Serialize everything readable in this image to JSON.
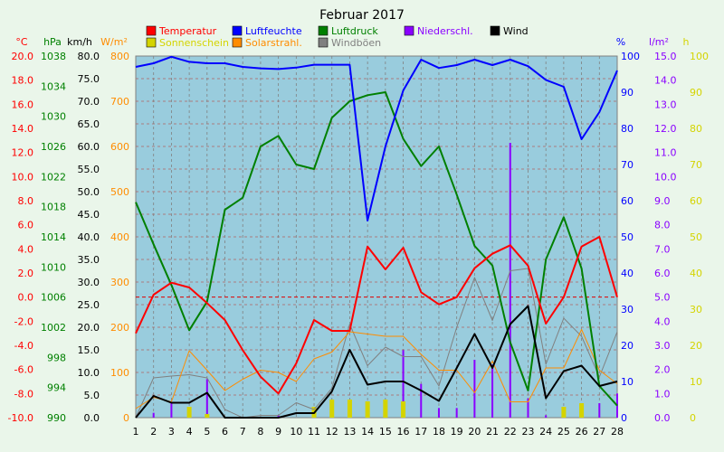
{
  "chart_data": {
    "type": "line",
    "title": "Februar 2017",
    "x": [
      1,
      2,
      3,
      4,
      5,
      6,
      7,
      8,
      9,
      10,
      11,
      12,
      13,
      14,
      15,
      16,
      17,
      18,
      19,
      20,
      21,
      22,
      23,
      24,
      25,
      26,
      27,
      28
    ],
    "legend": [
      {
        "label": "Temperatur",
        "color": "#ff0000"
      },
      {
        "label": "Luftfeuchte",
        "color": "#0000ff"
      },
      {
        "label": "Luftdruck",
        "color": "#008000"
      },
      {
        "label": "Niederschl.",
        "color": "#8a00ff"
      },
      {
        "label": "Wind",
        "color": "#000000"
      },
      {
        "label": "Sonnenschein",
        "color": "#d4d400"
      },
      {
        "label": "Solarstrahl.",
        "color": "#ff8c00"
      },
      {
        "label": "Windböen",
        "color": "#808080"
      }
    ],
    "axes": {
      "left": [
        {
          "unit": "°C",
          "color": "#ff0000",
          "ticks": [
            "20.0",
            "18.0",
            "16.0",
            "14.0",
            "12.0",
            "10.0",
            "8.0",
            "6.0",
            "4.0",
            "2.0",
            "0.0",
            "-2.0",
            "-4.0",
            "-6.0",
            "-8.0",
            "-10.0"
          ],
          "range": [
            -10,
            20
          ]
        },
        {
          "unit": "hPa",
          "color": "#008000",
          "ticks": [
            "1038",
            "1034",
            "1030",
            "1026",
            "1022",
            "1018",
            "1014",
            "1010",
            "1006",
            "1002",
            "998",
            "994",
            "990"
          ],
          "range": [
            990,
            1038
          ]
        },
        {
          "unit": "km/h",
          "color": "#000000",
          "ticks": [
            "80.0",
            "75.0",
            "70.0",
            "65.0",
            "60.0",
            "55.0",
            "50.0",
            "45.0",
            "40.0",
            "35.0",
            "30.0",
            "25.0",
            "20.0",
            "15.0",
            "10.0",
            "5.0",
            "0.0"
          ],
          "range": [
            0,
            80
          ]
        },
        {
          "unit": "W/m²",
          "color": "#ff8c00",
          "ticks": [
            "800",
            "700",
            "600",
            "500",
            "400",
            "300",
            "200",
            "100",
            "0"
          ],
          "range": [
            0,
            800
          ]
        }
      ],
      "right": [
        {
          "unit": "%",
          "color": "#0000ff",
          "ticks": [
            "100",
            "90",
            "80",
            "70",
            "60",
            "50",
            "40",
            "30",
            "20",
            "10",
            "0"
          ],
          "range": [
            0,
            100
          ]
        },
        {
          "unit": "l/m²",
          "color": "#8a00ff",
          "ticks": [
            "15.0",
            "14.0",
            "13.0",
            "12.0",
            "11.0",
            "10.0",
            "9.0",
            "8.0",
            "7.0",
            "6.0",
            "5.0",
            "4.0",
            "3.0",
            "2.0",
            "1.0",
            "0.0"
          ],
          "range": [
            0,
            15
          ]
        },
        {
          "unit": "h",
          "color": "#d4d400",
          "ticks": [
            "100",
            "90",
            "80",
            "70",
            "60",
            "50",
            "40",
            "30",
            "20",
            "10",
            "0"
          ],
          "range": [
            0,
            100
          ]
        }
      ]
    },
    "series": [
      {
        "name": "Temperatur",
        "axis": "°C",
        "color": "#ff0000",
        "type": "line",
        "values": [
          -3.0,
          0.2,
          1.2,
          0.8,
          -0.5,
          -1.9,
          -4.4,
          -6.6,
          -8.0,
          -5.5,
          -1.9,
          -2.8,
          -2.8,
          4.2,
          2.3,
          4.1,
          0.4,
          -0.6,
          0.0,
          2.4,
          3.6,
          4.3,
          2.6,
          -2.2,
          0.0,
          4.2,
          5.0,
          0.0
        ]
      },
      {
        "name": "Luftfeuchte",
        "axis": "%",
        "color": "#0000ff",
        "type": "line",
        "values": [
          97,
          98,
          99.8,
          98.4,
          98,
          98,
          97,
          96.6,
          96.4,
          96.8,
          97.6,
          97.6,
          97.6,
          54.5,
          75,
          90.5,
          99,
          96.7,
          97.5,
          99,
          97.5,
          99,
          97.2,
          93.4,
          91.5,
          77,
          84.5,
          96
        ]
      },
      {
        "name": "Luftdruck",
        "axis": "hPa",
        "color": "#008000",
        "type": "line",
        "values": [
          1018.6,
          1013.0,
          1007.6,
          1001.6,
          1005.4,
          1017.6,
          1019.2,
          1026.0,
          1027.4,
          1023.6,
          1023.0,
          1029.8,
          1032.0,
          1032.8,
          1033.2,
          1027.0,
          1023.4,
          1026.0,
          1019.6,
          1012.8,
          1010.2,
          1000.0,
          993.6,
          1011.0,
          1016.6,
          1009.8,
          994.2,
          991.6
        ]
      },
      {
        "name": "Wind",
        "axis": "km/h",
        "color": "#000000",
        "type": "line",
        "values": [
          0,
          4.8,
          3.3,
          3.3,
          5.5,
          0,
          0,
          0,
          0,
          1,
          1,
          5.8,
          15,
          7.3,
          8,
          8,
          6,
          3.7,
          11,
          18.5,
          11,
          20.7,
          24.7,
          4.3,
          10.3,
          11.5,
          7,
          8
        ]
      },
      {
        "name": "Windböen",
        "axis": "km/h",
        "color": "#808080",
        "type": "line",
        "values": [
          0,
          8.8,
          9.2,
          9.5,
          8.8,
          1.8,
          0,
          0.5,
          0.5,
          3.3,
          1.8,
          6.5,
          20.7,
          11.5,
          15.6,
          13.5,
          13.5,
          7,
          20,
          31,
          21.5,
          32.5,
          33,
          11.8,
          22,
          18,
          9,
          19
        ]
      },
      {
        "name": "Solarstrahl.",
        "axis": "W/m²",
        "color": "#ff8c00",
        "type": "line",
        "values": [
          20,
          45,
          35,
          148,
          105,
          60,
          85,
          105,
          100,
          80,
          130,
          145,
          190,
          185,
          180,
          180,
          140,
          105,
          105,
          55,
          125,
          35,
          35,
          110,
          110,
          195,
          105,
          75
        ]
      },
      {
        "name": "Niederschl.",
        "axis": "l/m²",
        "color": "#8a00ff",
        "type": "bar",
        "values": [
          0,
          0.2,
          0.6,
          0.2,
          1.6,
          0,
          0,
          0,
          0.1,
          0,
          0,
          0,
          0,
          0.2,
          0.6,
          2.8,
          1.4,
          0.4,
          0.4,
          2.4,
          2.2,
          11.4,
          0.8,
          0.1,
          0,
          0,
          0.6,
          1.0
        ]
      },
      {
        "name": "Sonnenschein",
        "axis": "h",
        "color": "#d4d400",
        "type": "bar",
        "values": [
          0,
          0,
          0,
          3,
          1,
          0,
          0,
          0,
          0,
          0,
          3,
          5,
          5,
          4.5,
          5,
          4.5,
          0,
          0,
          0,
          0,
          0,
          0,
          0,
          0,
          3,
          4,
          0,
          0
        ]
      }
    ],
    "zero_line": {
      "axis": "°C",
      "value": 0,
      "color": "#e00000"
    },
    "grid": true
  }
}
